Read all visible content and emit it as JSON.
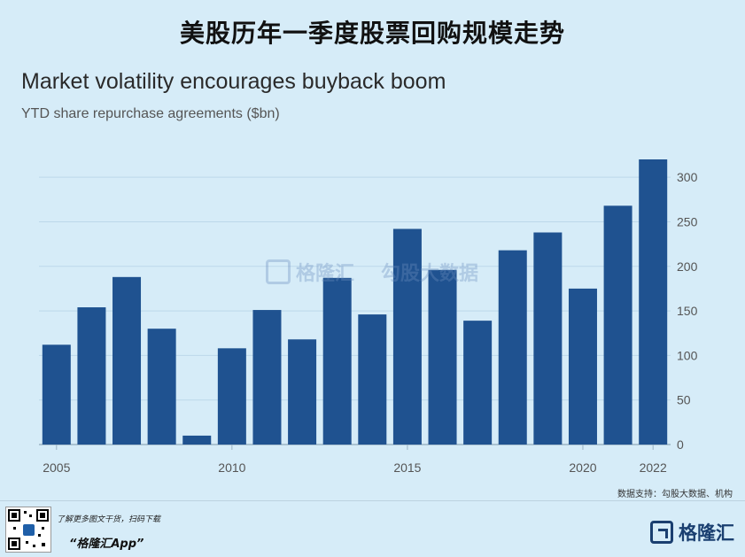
{
  "page": {
    "main_title": "美股历年一季度股票回购规模走势",
    "source": "数据支持：勾股大数据、机构",
    "footer_line1": "了解更多图文干货，扫码下载",
    "footer_line2": "“格隆汇App”",
    "brand": "格隆汇",
    "watermark_brand": "格隆汇",
    "watermark_text": "勾股大数据"
  },
  "chart_data": {
    "type": "bar",
    "title": "Market volatility encourages buyback boom",
    "subtitle": "YTD share repurchase agreements ($bn)",
    "categories": [
      "2005",
      "2006",
      "2007",
      "2008",
      "2009",
      "2010",
      "2011",
      "2012",
      "2013",
      "2014",
      "2015",
      "2016",
      "2017",
      "2018",
      "2019",
      "2020",
      "2021",
      "2022"
    ],
    "values": [
      112,
      154,
      188,
      130,
      10,
      108,
      151,
      118,
      187,
      146,
      242,
      196,
      139,
      218,
      238,
      175,
      268,
      320
    ],
    "x_tick_labels": [
      "2005",
      "2010",
      "2015",
      "2020",
      "2022"
    ],
    "y_ticks": [
      0,
      50,
      100,
      150,
      200,
      250,
      300
    ],
    "ylim": [
      0,
      320
    ],
    "y_axis_side": "right",
    "grid": true,
    "bar_color": "#1f5290",
    "grid_color": "#bcd8ea",
    "axis_color": "#9bb3c4"
  }
}
